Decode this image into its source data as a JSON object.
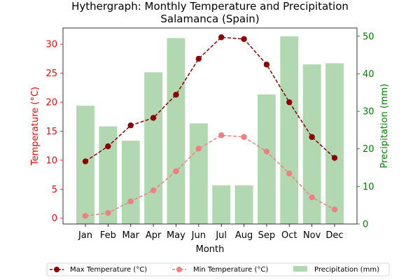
{
  "chart_data": {
    "type": "bar+line",
    "title": "Hythergraph: Monthly Temperature and Precipitation",
    "subtitle": "Salamanca (Spain)",
    "xlabel": "Month",
    "ylabel_left": "Temperature (°C)",
    "ylabel_right": "Precipitation (mm)",
    "categories": [
      "Jan",
      "Feb",
      "Mar",
      "Apr",
      "May",
      "Jun",
      "Jul",
      "Aug",
      "Sep",
      "Oct",
      "Nov",
      "Dec"
    ],
    "ylim_left": [
      -1.0,
      32.8
    ],
    "ylim_right": [
      0,
      52.2
    ],
    "yticks_left": [
      0,
      5,
      10,
      15,
      20,
      25,
      30
    ],
    "yticks_right": [
      0,
      10,
      20,
      30,
      40,
      50
    ],
    "series": [
      {
        "name": "Max Temperature (°C)",
        "kind": "line",
        "axis": "left",
        "color": "#8b0000",
        "values": [
          9.8,
          12.4,
          16.0,
          17.3,
          21.3,
          27.5,
          31.2,
          30.9,
          26.5,
          20.0,
          14.0,
          10.4
        ]
      },
      {
        "name": "Min Temperature (°C)",
        "kind": "line",
        "axis": "left",
        "color": "#f08080",
        "values": [
          0.4,
          0.9,
          2.9,
          4.8,
          8.1,
          12.0,
          14.3,
          14.0,
          11.5,
          7.7,
          3.6,
          1.5
        ]
      },
      {
        "name": "Precipitation (mm)",
        "kind": "bar",
        "axis": "right",
        "color": "#b1d8b1",
        "values": [
          31.5,
          26.0,
          22.2,
          40.4,
          49.5,
          26.8,
          10.3,
          10.3,
          34.5,
          50.0,
          42.5,
          42.8
        ]
      }
    ],
    "legend_position": "bottom-center",
    "colors": {
      "left_axis": "#ff0000",
      "right_axis": "#008000",
      "axis": "#000000"
    }
  }
}
